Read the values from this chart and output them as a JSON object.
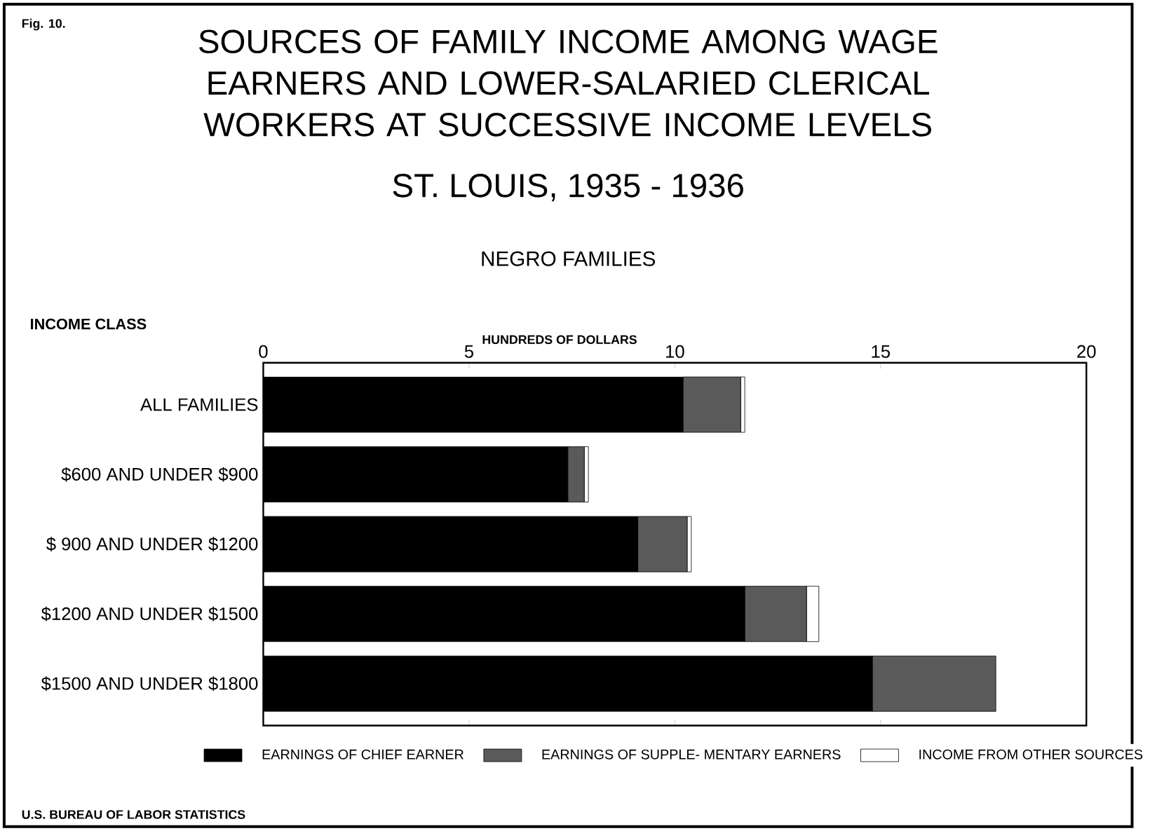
{
  "chart_data": {
    "type": "bar",
    "orientation": "horizontal",
    "stacked": true,
    "title": "SOURCES OF FAMILY INCOME AMONG WAGE EARNERS AND LOWER-SALARIED CLERICAL WORKERS AT SUCCESSIVE INCOME LEVELS",
    "subtitle": "ST. LOUIS, 1935 - 1936",
    "annotations": [
      "Fig. 10.",
      "NEGRO FAMILIES",
      "U.S. BUREAU OF LABOR STATISTICS",
      "INCOME CLASS"
    ],
    "xlabel": "HUNDREDS OF DOLLARS",
    "categories": [
      "ALL FAMILIES",
      "$600 AND UNDER $900",
      "$ 900 AND UNDER $1200",
      "$1200 AND UNDER $1500",
      "$1500 AND UNDER $1800"
    ],
    "series": [
      {
        "name": "EARNINGS OF CHIEF EARNER",
        "color": "#000000",
        "values": [
          10.2,
          7.4,
          9.1,
          11.7,
          14.8
        ]
      },
      {
        "name": "EARNINGS OF SUPPLE- MENTARY EARNERS",
        "color": "#5a5a5a",
        "values": [
          1.4,
          0.4,
          1.2,
          1.5,
          3.0
        ]
      },
      {
        "name": "INCOME FROM OTHER SOURCES",
        "color": "#ffffff",
        "values": [
          0.1,
          0.1,
          0.1,
          0.3,
          0.0
        ]
      }
    ],
    "xlim": [
      0,
      20
    ],
    "xticks": [
      0,
      5,
      10,
      15,
      20
    ],
    "legend": "bottom"
  }
}
